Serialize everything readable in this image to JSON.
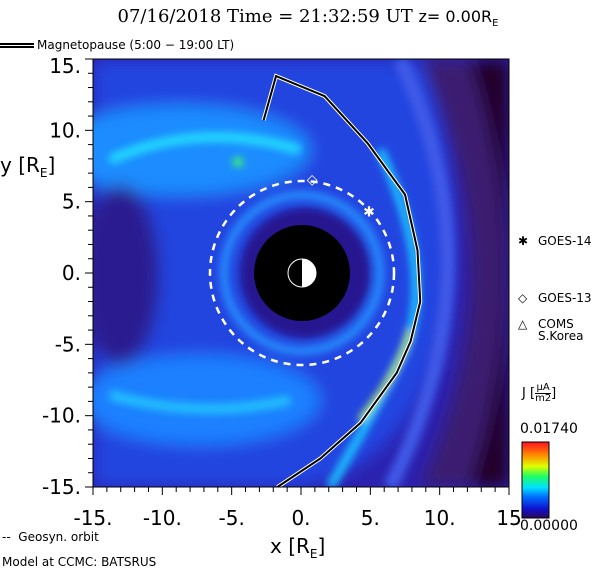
{
  "header": {
    "title": "07/16/2018 Time = 21:32:59 UT",
    "z_label": "z= 0.00R",
    "z_sub": "E"
  },
  "legend": {
    "magnetopause": "Magnetopause (5:00 − 19:00 LT)",
    "geosyn": "Geosyn. orbit",
    "model": "Model at CCMC: BATSRUS"
  },
  "satellites": [
    {
      "name": "GOES-14",
      "symbol": "✱",
      "x": 4.9,
      "y": 4.3
    },
    {
      "name": "GOES-13",
      "symbol": "◇",
      "x": 0.8,
      "y": 6.6
    },
    {
      "name": "COMS S.Korea",
      "line1": "COMS",
      "line2": "S.Korea",
      "symbol": "△"
    }
  ],
  "colorbar": {
    "label": "J",
    "unit_num": "μA",
    "unit_den": "m2",
    "max": "0.01740",
    "min": "0.00000"
  },
  "chart_data": {
    "type": "heatmap",
    "title": "07/16/2018 Time = 21:32:59 UT z= 0.00RE",
    "xlabel": "x [RE]",
    "ylabel": "y [RE]",
    "xlim": [
      -15,
      15
    ],
    "ylim": [
      -15,
      15
    ],
    "xticks": [
      "-15.",
      "-10.",
      "-5.",
      "0.",
      "5.",
      "10.",
      "15"
    ],
    "yticks": [
      "15.",
      "10.",
      "5.",
      "0.",
      "-5.",
      "-10.",
      "-15."
    ],
    "colorbar_range": [
      0.0,
      0.0174
    ],
    "geosyn_orbit_radius": 6.6,
    "magnetopause": [
      [
        -2.7,
        10.7
      ],
      [
        -1.8,
        13.8
      ],
      [
        1.7,
        12.4
      ],
      [
        4.8,
        9.1
      ],
      [
        7.5,
        5.5
      ],
      [
        8.4,
        1.6
      ],
      [
        8.6,
        -2.0
      ],
      [
        7.9,
        -4.8
      ],
      [
        6.9,
        -7.0
      ],
      [
        4.3,
        -10.5
      ],
      [
        1.4,
        -13.0
      ],
      [
        -1.7,
        -15.0
      ]
    ],
    "inner_boundary_radius": 3.5
  }
}
